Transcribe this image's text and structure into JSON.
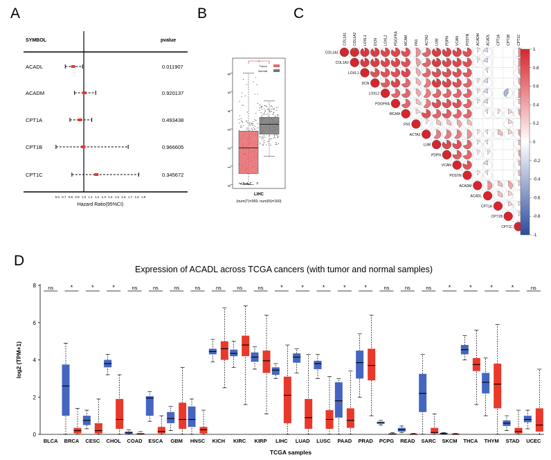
{
  "panel_labels": {
    "a": "A",
    "b": "B",
    "c": "C",
    "d": "D"
  },
  "colors": {
    "red": "#e8392b",
    "blue": "#4466c0",
    "pink": "#e7686d",
    "gray": "#777777",
    "corr_pos": "#d7252d",
    "corr_neg": "#2c4b9c"
  },
  "chart_data": [
    {
      "type": "forest",
      "panel": "A",
      "header_symbol": "SYMBOL",
      "header_pvalue": "pvalue",
      "xlabel": "Hazard Ratio(95%CI)",
      "ticks": [
        "0.6",
        "0.7",
        "0.8",
        "0.9",
        "1.0",
        "1.1",
        "1.2",
        "1.3",
        "1.4",
        "1.5",
        "1.6",
        "1.7",
        "1.8",
        "1.9"
      ],
      "tick_values": [
        0.6,
        0.7,
        0.8,
        0.9,
        1.0,
        1.1,
        1.2,
        1.3,
        1.4,
        1.5,
        1.6,
        1.7,
        1.8,
        1.9
      ],
      "xlim": [
        0.55,
        1.95
      ],
      "reference": 1.0,
      "rows": [
        {
          "symbol": "ACADL",
          "hr": 0.84,
          "lo": 0.72,
          "hi": 0.98,
          "pvalue": "0.011907"
        },
        {
          "symbol": "ACADM",
          "hr": 1.01,
          "lo": 0.86,
          "hi": 1.18,
          "pvalue": "0.920137"
        },
        {
          "symbol": "CPT1A",
          "hr": 0.94,
          "lo": 0.79,
          "hi": 1.12,
          "pvalue": "0.493438"
        },
        {
          "symbol": "CPT1B",
          "hr": 0.99,
          "lo": 0.58,
          "hi": 1.67,
          "pvalue": "0.966605"
        },
        {
          "symbol": "CPT1C",
          "hr": 1.19,
          "lo": 0.82,
          "hi": 1.83,
          "pvalue": "0.345672"
        }
      ]
    },
    {
      "type": "boxplot",
      "panel": "B",
      "xlabel": "LIHC",
      "sublabel": "(num(T)=369; num(N)=160)",
      "legend": [
        "Tumor",
        "Normal"
      ],
      "yticks": [
        0,
        1,
        2,
        3,
        4,
        5,
        6
      ],
      "ylim": [
        -0.2,
        6.8
      ],
      "significance": "*",
      "groups": [
        {
          "name": "Tumor",
          "q1": 0.6,
          "median": 1.98,
          "q3": 2.88,
          "whisker_low": 0.0,
          "whisker_high": 6.0
        },
        {
          "name": "Normal",
          "q1": 2.72,
          "median": 3.25,
          "q3": 3.62,
          "whisker_low": 1.52,
          "whisker_high": 4.5
        }
      ]
    },
    {
      "type": "heatmap",
      "panel": "C",
      "labels": [
        "COL1A1",
        "COL1A2",
        "LOXL1",
        "DCN",
        "LOXL2",
        "PDGFRA",
        "MCAM",
        "FN1",
        "ACTA2",
        "LUM",
        "PDPN",
        "VCAN",
        "POSTN",
        "ACADM",
        "ACADL",
        "CPT1A",
        "CPT1B",
        "CPT1C"
      ],
      "colorbar_ticks": [
        "1",
        "0.8",
        "0.6",
        "0.4",
        "0.2",
        "0",
        "-0.2",
        "-0.4",
        "-0.6",
        "-0.8",
        "-1"
      ],
      "colorbar_values": [
        1,
        0.8,
        0.6,
        0.4,
        0.2,
        0,
        -0.2,
        -0.4,
        -0.6,
        -0.8,
        -1
      ],
      "correlations": [
        [
          1,
          0.97,
          0.92,
          0.9,
          0.85,
          0.85,
          0.8,
          0.5,
          0.7,
          0.9,
          0.88,
          0.85,
          0.8,
          0.1,
          -0.2,
          0,
          0,
          0.5
        ],
        [
          0.97,
          1,
          0.9,
          0.9,
          0.85,
          0.85,
          0.8,
          0.45,
          0.7,
          0.9,
          0.85,
          0.85,
          0.8,
          0.1,
          -0.2,
          0,
          0,
          0.5
        ],
        [
          0.92,
          0.9,
          1,
          0.8,
          0.8,
          0.8,
          0.85,
          0.4,
          0.7,
          0.8,
          0.8,
          0.8,
          0.75,
          0,
          -0.1,
          0,
          0,
          0.4
        ],
        [
          0.9,
          0.9,
          0.8,
          1,
          0.75,
          0.85,
          0.7,
          0.35,
          0.6,
          0.9,
          0.85,
          0.8,
          0.7,
          0.1,
          -0.2,
          0,
          0,
          0.4
        ],
        [
          0.85,
          0.85,
          0.8,
          0.75,
          1,
          0.7,
          0.7,
          0.4,
          0.6,
          0.7,
          0.7,
          0.7,
          0.7,
          0.1,
          -0.2,
          0,
          -0.4,
          0.5
        ],
        [
          0.85,
          0.85,
          0.8,
          0.85,
          0.7,
          1,
          0.7,
          0.3,
          0.6,
          0.8,
          0.8,
          0.8,
          0.7,
          0.1,
          -0.2,
          0,
          0,
          0.3
        ],
        [
          0.8,
          0.8,
          0.85,
          0.7,
          0.7,
          0.7,
          1,
          0.2,
          0.8,
          0.7,
          0.75,
          0.7,
          0.7,
          0,
          -0.1,
          0.1,
          0.2,
          0.4
        ],
        [
          0.5,
          0.45,
          0.4,
          0.35,
          0.4,
          0.3,
          0.2,
          1,
          0.1,
          0.3,
          0.3,
          0.4,
          0.3,
          0,
          0,
          0,
          0.2,
          0
        ],
        [
          0.7,
          0.7,
          0.7,
          0.6,
          0.6,
          0.6,
          0.8,
          0.1,
          1,
          0.6,
          0.6,
          0.6,
          0.5,
          0.1,
          -0.1,
          0.3,
          0.2,
          0.4
        ],
        [
          0.9,
          0.9,
          0.8,
          0.9,
          0.7,
          0.8,
          0.7,
          0.3,
          0.6,
          1,
          0.85,
          0.8,
          0.7,
          0.1,
          -0.1,
          0,
          0,
          0.3
        ],
        [
          0.88,
          0.85,
          0.8,
          0.85,
          0.7,
          0.8,
          0.75,
          0.3,
          0.6,
          0.85,
          1,
          0.75,
          0.7,
          0.1,
          0.1,
          0,
          0,
          0.4
        ],
        [
          0.85,
          0.85,
          0.8,
          0.8,
          0.7,
          0.8,
          0.7,
          0.4,
          0.6,
          0.8,
          0.75,
          1,
          0.8,
          0,
          -0.2,
          0,
          0,
          0.3
        ],
        [
          0.8,
          0.8,
          0.75,
          0.7,
          0.7,
          0.7,
          0.7,
          0.3,
          0.5,
          0.7,
          0.7,
          0.8,
          1,
          0.1,
          -0.1,
          0,
          0,
          0.3
        ],
        [
          0.1,
          0.1,
          0,
          0.1,
          0.1,
          0.1,
          0,
          0,
          0.1,
          0.1,
          0.1,
          0,
          0.1,
          1,
          0.5,
          0.3,
          0.4,
          0.2
        ],
        [
          -0.2,
          -0.2,
          -0.1,
          -0.2,
          -0.2,
          -0.2,
          -0.1,
          0,
          -0.1,
          -0.1,
          0.1,
          -0.2,
          -0.1,
          0.5,
          1,
          0.3,
          0.2,
          0
        ],
        [
          0,
          0,
          0,
          0,
          0,
          0,
          0.1,
          0,
          0.3,
          0,
          0,
          0,
          0,
          0.3,
          0.3,
          1,
          0.2,
          0.1
        ],
        [
          0,
          0,
          0,
          0,
          -0.4,
          0,
          0.2,
          0.2,
          0.2,
          0,
          0,
          0,
          0,
          0.4,
          0.2,
          0.2,
          1,
          0.1
        ],
        [
          0.5,
          0.5,
          0.4,
          0.4,
          0.5,
          0.3,
          0.4,
          0,
          0.4,
          0.3,
          0.4,
          0.3,
          0.3,
          0.2,
          0,
          0.1,
          0.1,
          1
        ]
      ]
    },
    {
      "type": "boxplot",
      "panel": "D",
      "title": "Expression of ACADL across TCGA cancers (with tumor and normal samples)",
      "xlabel": "TCGA samples",
      "ylabel": "log2 (TPM+1)",
      "ylim": [
        0,
        8
      ],
      "yticks": [
        0,
        2,
        4,
        6,
        8
      ],
      "categories": [
        "BLCA",
        "BRCA",
        "CESC",
        "CHOL",
        "COAD",
        "ESCA",
        "GBM",
        "HNSC",
        "KICH",
        "KIRC",
        "KIRP",
        "LIHC",
        "LUAD",
        "LUSC",
        "PAAD",
        "PRAD",
        "PCPG",
        "READ",
        "SARC",
        "SKCM",
        "THCA",
        "THYM",
        "STAD",
        "UCEC"
      ],
      "significance": [
        "ns",
        "*",
        "*",
        "*",
        "ns",
        "ns",
        "ns",
        "ns",
        "ns",
        "ns",
        "ns",
        "*",
        "*",
        "*",
        "*",
        "*",
        "ns",
        "ns",
        "ns",
        "*",
        "*",
        "*",
        "*",
        "ns"
      ],
      "series": [
        {
          "name": "Normal",
          "color": "#4466c0",
          "boxes": [
            null,
            {
              "wl": 0.0,
              "q1": 1.0,
              "med": 2.6,
              "q3": 3.75,
              "wh": 4.9
            },
            {
              "wl": 0.3,
              "q1": 0.5,
              "med": 0.75,
              "q3": 1.0,
              "wh": 1.3
            },
            {
              "wl": 3.2,
              "q1": 3.6,
              "med": 3.8,
              "q3": 4.0,
              "wh": 4.3
            },
            {
              "wl": 0.0,
              "q1": 0.03,
              "med": 0.08,
              "q3": 0.15,
              "wh": 0.25
            },
            {
              "wl": 0.7,
              "q1": 1.0,
              "med": 1.95,
              "q3": 2.05,
              "wh": 2.3
            },
            {
              "wl": 0.2,
              "q1": 0.6,
              "med": 0.85,
              "q3": 1.2,
              "wh": 1.5
            },
            {
              "wl": 0.0,
              "q1": 0.4,
              "med": 0.8,
              "q3": 1.5,
              "wh": 1.9
            },
            {
              "wl": 3.9,
              "q1": 4.3,
              "med": 4.45,
              "q3": 4.6,
              "wh": 5.1
            },
            {
              "wl": 3.6,
              "q1": 4.2,
              "med": 4.35,
              "q3": 4.55,
              "wh": 5.0
            },
            {
              "wl": 3.5,
              "q1": 3.9,
              "med": 4.15,
              "q3": 4.4,
              "wh": 4.7
            },
            {
              "wl": 3.0,
              "q1": 3.2,
              "med": 3.45,
              "q3": 3.6,
              "wh": 3.8
            },
            {
              "wl": 3.3,
              "q1": 3.85,
              "med": 4.15,
              "q3": 4.35,
              "wh": 4.6
            },
            {
              "wl": 3.0,
              "q1": 3.5,
              "med": 3.8,
              "q3": 3.95,
              "wh": 4.3
            },
            {
              "wl": 0.0,
              "q1": 0.9,
              "med": 1.8,
              "q3": 2.8,
              "wh": 3.0
            },
            {
              "wl": 2.0,
              "q1": 3.0,
              "med": 3.85,
              "q3": 4.5,
              "wh": 5.4
            },
            {
              "wl": 0.5,
              "q1": 0.57,
              "med": 0.62,
              "q3": 0.68,
              "wh": 0.75
            },
            {
              "wl": 0.1,
              "q1": 0.15,
              "med": 0.25,
              "q3": 0.35,
              "wh": 0.45
            },
            {
              "wl": 0.0,
              "q1": 1.2,
              "med": 2.2,
              "q3": 3.25,
              "wh": 4.3
            },
            {
              "wl": 0.0,
              "q1": 0.02,
              "med": 0.05,
              "q3": 0.08,
              "wh": 0.1
            },
            {
              "wl": 4.0,
              "q1": 4.3,
              "med": 4.55,
              "q3": 4.8,
              "wh": 5.3
            },
            {
              "wl": 1.0,
              "q1": 2.2,
              "med": 2.8,
              "q3": 3.3,
              "wh": 4.1
            },
            {
              "wl": 0.2,
              "q1": 0.45,
              "med": 0.6,
              "q3": 0.75,
              "wh": 1.0
            },
            {
              "wl": 0.3,
              "q1": 0.65,
              "med": 0.8,
              "q3": 1.0,
              "wh": 1.3
            }
          ]
        },
        {
          "name": "Tumor",
          "color": "#e8392b",
          "boxes": [
            null,
            {
              "wl": 0.0,
              "q1": 0.05,
              "med": 0.2,
              "q3": 0.35,
              "wh": 1.4
            },
            {
              "wl": 0.0,
              "q1": 0.05,
              "med": 0.2,
              "q3": 0.6,
              "wh": 1.9
            },
            {
              "wl": 0.0,
              "q1": 0.3,
              "med": 0.8,
              "q3": 1.9,
              "wh": 3.2
            },
            {
              "wl": 0.0,
              "q1": 0.01,
              "med": 0.03,
              "q3": 0.06,
              "wh": 0.15
            },
            {
              "wl": 0.0,
              "q1": 0.05,
              "med": 0.15,
              "q3": 0.4,
              "wh": 1.0
            },
            {
              "wl": 0.0,
              "q1": 0.3,
              "med": 0.8,
              "q3": 1.7,
              "wh": 3.6
            },
            {
              "wl": 0.0,
              "q1": 0.05,
              "med": 0.25,
              "q3": 0.4,
              "wh": 1.3
            },
            {
              "wl": 2.5,
              "q1": 4.0,
              "med": 4.6,
              "q3": 5.0,
              "wh": 6.8
            },
            {
              "wl": 1.6,
              "q1": 4.2,
              "med": 4.8,
              "q3": 5.3,
              "wh": 6.9
            },
            {
              "wl": 1.1,
              "q1": 3.3,
              "med": 3.95,
              "q3": 4.5,
              "wh": 6.4
            },
            {
              "wl": 0.0,
              "q1": 0.6,
              "med": 2.1,
              "q3": 3.1,
              "wh": 4.8
            },
            {
              "wl": 0.0,
              "q1": 0.3,
              "med": 0.9,
              "q3": 1.9,
              "wh": 4.3
            },
            {
              "wl": 0.0,
              "q1": 0.3,
              "med": 0.8,
              "q3": 1.3,
              "wh": 3.1
            },
            {
              "wl": 0.0,
              "q1": 0.35,
              "med": 0.75,
              "q3": 1.4,
              "wh": 3.4
            },
            {
              "wl": 1.0,
              "q1": 2.9,
              "med": 3.7,
              "q3": 4.6,
              "wh": 6.4
            },
            {
              "wl": 0.0,
              "q1": 0.0,
              "med": 0.02,
              "q3": 0.05,
              "wh": 0.1
            },
            {
              "wl": 0.0,
              "q1": 0.0,
              "med": 0.01,
              "q3": 0.03,
              "wh": 0.05
            },
            {
              "wl": 0.0,
              "q1": 0.05,
              "med": 0.1,
              "q3": 0.35,
              "wh": 1.1
            },
            {
              "wl": 0.0,
              "q1": 0.0,
              "med": 0.01,
              "q3": 0.03,
              "wh": 0.05
            },
            {
              "wl": 1.6,
              "q1": 3.4,
              "med": 3.75,
              "q3": 4.1,
              "wh": 5.6
            },
            {
              "wl": 0.0,
              "q1": 1.4,
              "med": 2.7,
              "q3": 3.8,
              "wh": 5.9
            },
            {
              "wl": 0.0,
              "q1": 0.05,
              "med": 0.15,
              "q3": 0.35,
              "wh": 1.3
            },
            {
              "wl": 0.0,
              "q1": 0.15,
              "med": 0.5,
              "q3": 1.4,
              "wh": 3.5
            }
          ]
        }
      ]
    }
  ]
}
